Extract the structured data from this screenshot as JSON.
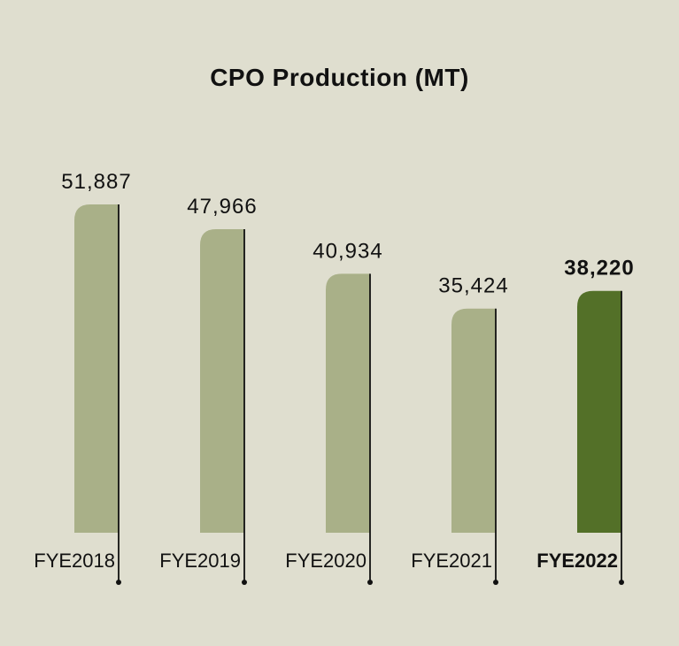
{
  "chart_data": {
    "type": "bar",
    "title": "CPO Production (MT)",
    "categories": [
      "FYE2018",
      "FYE2019",
      "FYE2020",
      "FYE2021",
      "FYE2022"
    ],
    "values": [
      51887,
      47966,
      40934,
      35424,
      38220
    ],
    "value_labels": [
      "51,887",
      "47,966",
      "40,934",
      "35,424",
      "38,220"
    ],
    "highlight_category": "FYE2022",
    "xlabel": "",
    "ylabel": "",
    "grid": false,
    "colors": {
      "background": "#dfdecf",
      "bar": "#a9b088",
      "bar_highlight": "#537028",
      "axis_line": "#111111",
      "text": "#111111"
    }
  }
}
